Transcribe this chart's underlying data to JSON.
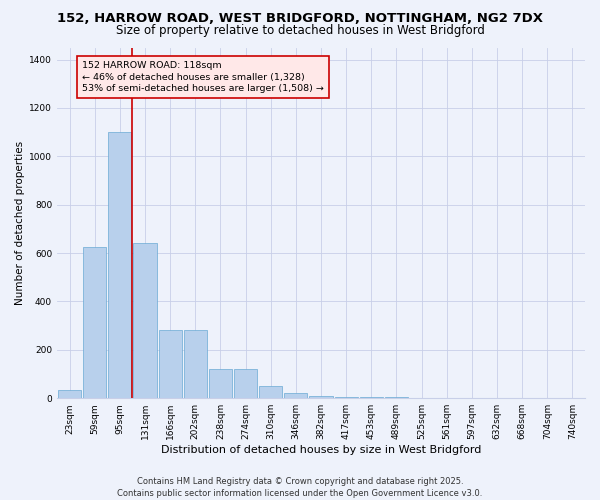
{
  "title1": "152, HARROW ROAD, WEST BRIDGFORD, NOTTINGHAM, NG2 7DX",
  "title2": "Size of property relative to detached houses in West Bridgford",
  "xlabel": "Distribution of detached houses by size in West Bridgford",
  "ylabel": "Number of detached properties",
  "bin_labels": [
    "23sqm",
    "59sqm",
    "95sqm",
    "131sqm",
    "166sqm",
    "202sqm",
    "238sqm",
    "274sqm",
    "310sqm",
    "346sqm",
    "382sqm",
    "417sqm",
    "453sqm",
    "489sqm",
    "525sqm",
    "561sqm",
    "597sqm",
    "632sqm",
    "668sqm",
    "704sqm",
    "740sqm"
  ],
  "bar_heights": [
    35,
    625,
    1100,
    640,
    280,
    280,
    120,
    120,
    50,
    20,
    10,
    5,
    5,
    3,
    2,
    2,
    2,
    2,
    2,
    2,
    2
  ],
  "bar_color": "#b8d0ec",
  "bar_edgecolor": "#6aaad4",
  "background_color": "#eef2fb",
  "grid_color": "#c8cfe8",
  "vline_color": "#cc0000",
  "vline_xindex": 2.5,
  "annotation_text": "152 HARROW ROAD: 118sqm\n← 46% of detached houses are smaller (1,328)\n53% of semi-detached houses are larger (1,508) →",
  "annotation_box_facecolor": "#ffe8e8",
  "annotation_box_edgecolor": "#cc0000",
  "ylim": [
    0,
    1450
  ],
  "yticks": [
    0,
    200,
    400,
    600,
    800,
    1000,
    1200,
    1400
  ],
  "footer1": "Contains HM Land Registry data © Crown copyright and database right 2025.",
  "footer2": "Contains public sector information licensed under the Open Government Licence v3.0.",
  "title1_fontsize": 9.5,
  "title2_fontsize": 8.5,
  "xlabel_fontsize": 8,
  "ylabel_fontsize": 7.5,
  "tick_fontsize": 6.5,
  "annotation_fontsize": 6.8,
  "footer_fontsize": 6
}
